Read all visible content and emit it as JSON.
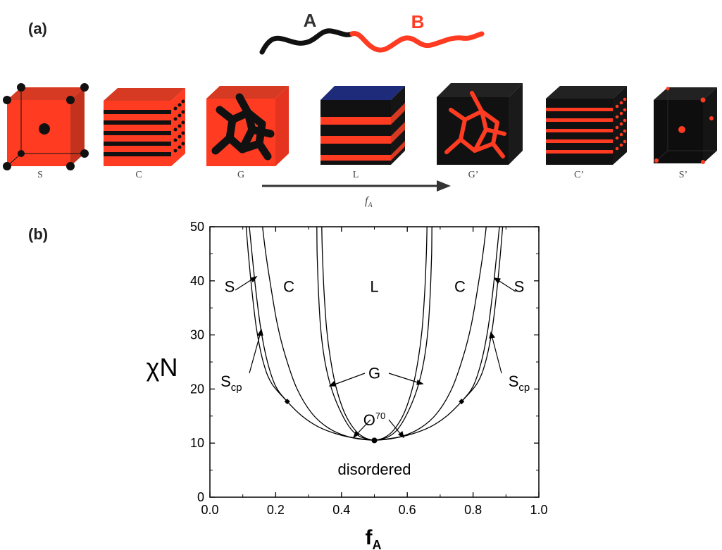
{
  "panel_a": {
    "label": "(a)",
    "chain": {
      "block_a": "A",
      "block_b": "B"
    },
    "cubes": [
      {
        "id": "S",
        "label": "S"
      },
      {
        "id": "C",
        "label": "C"
      },
      {
        "id": "G",
        "label": "G"
      },
      {
        "id": "L",
        "label": "L"
      },
      {
        "id": "Gp",
        "label": "G’"
      },
      {
        "id": "Cp",
        "label": "C’"
      },
      {
        "id": "Sp",
        "label": "S’"
      }
    ],
    "arrow_label": {
      "main": "f",
      "sub": "A"
    }
  },
  "panel_b": {
    "label": "(b)"
  },
  "colors": {
    "red": "#ff3b22",
    "black": "#111111",
    "blue": "#1e2a7a"
  },
  "chart_data": {
    "type": "line",
    "xlabel": {
      "main": "f",
      "sub": "A"
    },
    "ylabel": "χN",
    "xlim": [
      0,
      1
    ],
    "ylim": [
      0,
      50
    ],
    "xticks": [
      "0.0",
      "0.2",
      "0.4",
      "0.6",
      "0.8",
      "1.0"
    ],
    "yticks": [
      "0",
      "10",
      "20",
      "30",
      "40",
      "50"
    ],
    "grid": false,
    "critical_point": [
      0.5,
      10.5
    ],
    "triple_points": [
      [
        0.235,
        17.7
      ],
      [
        0.765,
        17.7
      ]
    ],
    "series": [
      {
        "values": [
          [
            0.12,
            50
          ],
          [
            0.128,
            45
          ],
          [
            0.14,
            38
          ],
          [
            0.155,
            31
          ],
          [
            0.175,
            25
          ],
          [
            0.2,
            20.5
          ],
          [
            0.235,
            17.7
          ],
          [
            0.28,
            15
          ],
          [
            0.33,
            13
          ],
          [
            0.39,
            11.6
          ],
          [
            0.45,
            10.8
          ],
          [
            0.5,
            10.5
          ]
        ]
      },
      {
        "values": [
          [
            0.11,
            50
          ],
          [
            0.117,
            45
          ],
          [
            0.128,
            38
          ],
          [
            0.142,
            31
          ],
          [
            0.162,
            25
          ],
          [
            0.188,
            21
          ],
          [
            0.235,
            17.7
          ]
        ]
      },
      {
        "values": [
          [
            0.16,
            50
          ],
          [
            0.17,
            45
          ],
          [
            0.185,
            39
          ],
          [
            0.205,
            32
          ],
          [
            0.23,
            26
          ],
          [
            0.265,
            20
          ],
          [
            0.31,
            15.5
          ],
          [
            0.36,
            12.8
          ],
          [
            0.42,
            11.2
          ],
          [
            0.5,
            10.5
          ]
        ]
      },
      {
        "values": [
          [
            0.325,
            50
          ],
          [
            0.326,
            45
          ],
          [
            0.33,
            38
          ],
          [
            0.337,
            31
          ],
          [
            0.35,
            25
          ],
          [
            0.37,
            20
          ],
          [
            0.4,
            15.5
          ],
          [
            0.43,
            12.5
          ],
          [
            0.46,
            11.1
          ],
          [
            0.5,
            10.5
          ]
        ]
      },
      {
        "values": [
          [
            0.34,
            50
          ],
          [
            0.342,
            45
          ],
          [
            0.347,
            38
          ],
          [
            0.355,
            31
          ],
          [
            0.368,
            25
          ],
          [
            0.385,
            20
          ],
          [
            0.41,
            15.5
          ],
          [
            0.44,
            12.5
          ],
          [
            0.47,
            11
          ],
          [
            0.5,
            10.5
          ]
        ]
      },
      {
        "values": [
          [
            0.88,
            50
          ],
          [
            0.872,
            45
          ],
          [
            0.86,
            38
          ],
          [
            0.845,
            31
          ],
          [
            0.825,
            25
          ],
          [
            0.8,
            20.5
          ],
          [
            0.765,
            17.7
          ],
          [
            0.72,
            15
          ],
          [
            0.67,
            13
          ],
          [
            0.61,
            11.6
          ],
          [
            0.55,
            10.8
          ],
          [
            0.5,
            10.5
          ]
        ]
      },
      {
        "values": [
          [
            0.89,
            50
          ],
          [
            0.883,
            45
          ],
          [
            0.872,
            38
          ],
          [
            0.858,
            31
          ],
          [
            0.838,
            25
          ],
          [
            0.812,
            21
          ],
          [
            0.765,
            17.7
          ]
        ]
      },
      {
        "values": [
          [
            0.84,
            50
          ],
          [
            0.83,
            45
          ],
          [
            0.815,
            39
          ],
          [
            0.795,
            32
          ],
          [
            0.77,
            26
          ],
          [
            0.735,
            20
          ],
          [
            0.69,
            15.5
          ],
          [
            0.64,
            12.8
          ],
          [
            0.58,
            11.2
          ],
          [
            0.5,
            10.5
          ]
        ]
      },
      {
        "values": [
          [
            0.675,
            50
          ],
          [
            0.674,
            45
          ],
          [
            0.67,
            38
          ],
          [
            0.663,
            31
          ],
          [
            0.65,
            25
          ],
          [
            0.63,
            20
          ],
          [
            0.6,
            15.5
          ],
          [
            0.57,
            12.5
          ],
          [
            0.54,
            11.1
          ],
          [
            0.5,
            10.5
          ]
        ]
      },
      {
        "values": [
          [
            0.66,
            50
          ],
          [
            0.658,
            45
          ],
          [
            0.653,
            38
          ],
          [
            0.645,
            31
          ],
          [
            0.632,
            25
          ],
          [
            0.615,
            20
          ],
          [
            0.59,
            15.5
          ],
          [
            0.56,
            12.5
          ],
          [
            0.53,
            11
          ],
          [
            0.5,
            10.5
          ]
        ]
      }
    ],
    "annotations": [
      {
        "text": "S",
        "x": 0.06,
        "y": 39
      },
      {
        "text": "C",
        "x": 0.24,
        "y": 39
      },
      {
        "text": "L",
        "x": 0.5,
        "y": 39
      },
      {
        "text": "C",
        "x": 0.76,
        "y": 39
      },
      {
        "text": "S",
        "x": 0.94,
        "y": 39
      },
      {
        "text": "G",
        "x": 0.5,
        "y": 23
      },
      {
        "text": "O",
        "sup": "70",
        "x": 0.5,
        "y": 14.3
      },
      {
        "text": "S",
        "sub": "cp",
        "x": 0.065,
        "y": 21.5
      },
      {
        "text": "S",
        "sub": "cp",
        "x": 0.94,
        "y": 21.5
      },
      {
        "text": "disordered",
        "x": 0.5,
        "y": 5
      }
    ]
  }
}
